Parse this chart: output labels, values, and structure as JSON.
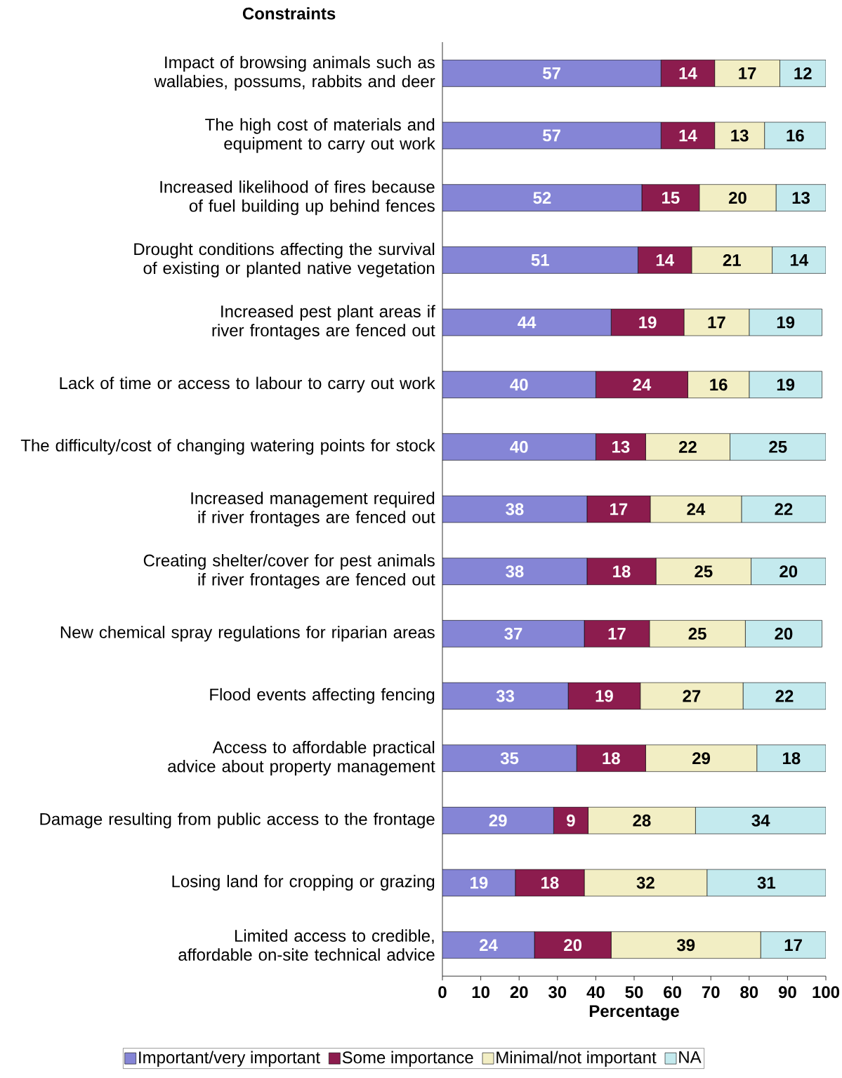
{
  "chart_data": {
    "type": "bar",
    "orientation": "horizontal",
    "stacked": true,
    "title": "Constraints",
    "xlabel": "Percentage",
    "categories": [
      "Impact of browsing animals such as wallabies, possums, rabbits and deer",
      "The high cost of materials and equipment to carry out work",
      "Increased likelihood of fires because of fuel building up behind fences",
      "Drought conditions affecting the survival of existing or planted native vegetation",
      "Increased pest plant areas if river frontages are fenced out",
      "Lack of time or access to labour to carry out work",
      "The difficulty/cost of changing watering points for stock",
      "Increased management required if river frontages are fenced out",
      "Creating shelter/cover for pest animals if river frontages are fenced out",
      "New chemical spray regulations for riparian areas",
      "Flood events affecting fencing",
      "Access to affordable practical advice about property management",
      "Damage resulting from public access to the frontage",
      "Losing land for cropping or grazing",
      "Limited access to credible, affordable on-site technical advice"
    ],
    "series": [
      {
        "name": "Important/very important",
        "color": "#8585d6",
        "values": [
          57,
          57,
          52,
          51,
          44,
          40,
          40,
          37.7,
          37.7,
          37,
          32.8,
          35,
          29,
          19,
          24
        ],
        "value_labels": [
          "57",
          "57",
          "52",
          "51",
          "44",
          "40",
          "40",
          "38",
          "38",
          "37",
          "33",
          "35",
          "29",
          "19",
          "24"
        ]
      },
      {
        "name": "Some importance",
        "color": "#8c1c4e",
        "values": [
          14,
          14,
          15,
          14,
          19,
          24,
          13,
          16.5,
          18,
          17,
          18.8,
          18,
          9,
          18,
          20
        ],
        "value_labels": [
          "14",
          "14",
          "15",
          "14",
          "19",
          "24",
          "13",
          "17",
          "18",
          "17",
          "19",
          "18",
          "9",
          "18",
          "20"
        ]
      },
      {
        "name": "Minimal/not important",
        "color": "#f2eec4",
        "values": [
          17,
          13,
          20,
          21,
          17,
          16,
          22,
          23.8,
          24.8,
          25,
          26.8,
          29,
          28,
          32,
          39
        ],
        "value_labels": [
          "17",
          "13",
          "20",
          "21",
          "17",
          "16",
          "22",
          "24",
          "25",
          "25",
          "27",
          "29",
          "28",
          "32",
          "39"
        ]
      },
      {
        "name": "NA",
        "color": "#c4eaee",
        "values": [
          12,
          16,
          13,
          14,
          19,
          19,
          25,
          22,
          19.5,
          20,
          21.6,
          18,
          34,
          31,
          17
        ],
        "value_labels": [
          "12",
          "16",
          "13",
          "14",
          "19",
          "19",
          "25",
          "22",
          "20",
          "20",
          "22",
          "18",
          "34",
          "31",
          "17"
        ]
      }
    ],
    "xlim": [
      0,
      100
    ],
    "xticks": [
      0,
      10,
      20,
      30,
      40,
      50,
      60,
      70,
      80,
      90,
      100
    ],
    "legend": "bottom",
    "grid": false
  }
}
